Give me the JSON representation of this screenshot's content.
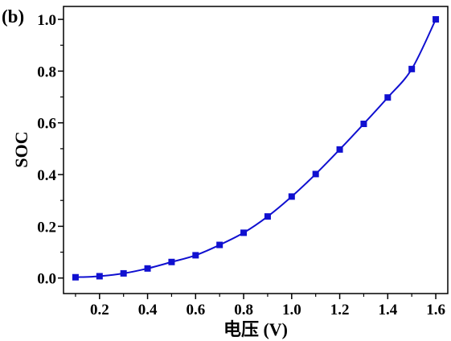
{
  "chart_data": {
    "type": "line",
    "panel_label": "(b)",
    "xlabel": "电压 (V)",
    "ylabel": "SOC",
    "xlim": [
      0.05,
      1.65
    ],
    "ylim": [
      -0.06,
      1.05
    ],
    "x_ticks": [
      "0.2",
      "0.4",
      "0.6",
      "0.8",
      "1.0",
      "1.2",
      "1.4",
      "1.6"
    ],
    "y_ticks": [
      "0.0",
      "0.2",
      "0.4",
      "0.6",
      "0.8",
      "1.0"
    ],
    "grid": false,
    "marker": "square",
    "series": [
      {
        "color": "#1010d0",
        "x": [
          0.1,
          0.2,
          0.3,
          0.4,
          0.5,
          0.6,
          0.7,
          0.8,
          0.9,
          1.0,
          1.1,
          1.2,
          1.3,
          1.4,
          1.5,
          1.6
        ],
        "y": [
          0.003,
          0.007,
          0.018,
          0.037,
          0.062,
          0.088,
          0.128,
          0.175,
          0.238,
          0.315,
          0.402,
          0.497,
          0.596,
          0.698,
          0.808,
          1.0
        ]
      }
    ]
  }
}
